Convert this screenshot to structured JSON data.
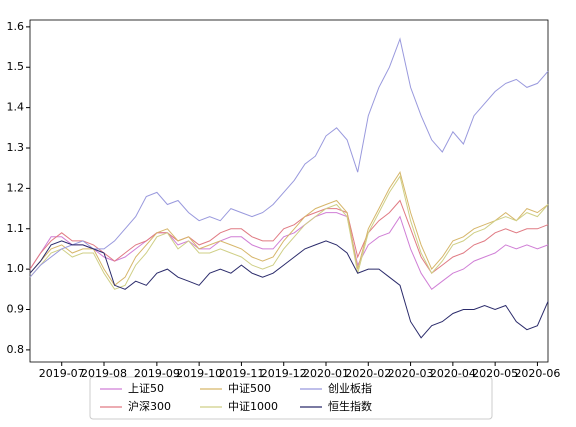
{
  "chart_data": {
    "type": "line",
    "categories": [
      null,
      null,
      null,
      "2019-07",
      null,
      null,
      null,
      "2019-08",
      null,
      null,
      null,
      null,
      "2019-09",
      null,
      null,
      null,
      "2019-10",
      null,
      null,
      null,
      "2019-11",
      null,
      null,
      null,
      "2019-12",
      null,
      null,
      null,
      "2020-01",
      null,
      null,
      null,
      "2020-02",
      null,
      null,
      null,
      "2020-03",
      null,
      null,
      null,
      "2020-04",
      null,
      null,
      null,
      "2020-05",
      null,
      null,
      null,
      "2020-06",
      null
    ],
    "ylim": [
      0.77,
      1.617
    ],
    "yticks": [
      0.8,
      0.9,
      {
        "value": 1,
        "label": "1.0"
      },
      1.1,
      1.2,
      1.3,
      1.4,
      1.5,
      1.6
    ],
    "grid": false,
    "legend": "bottom",
    "series": [
      {
        "name": "上证50",
        "color": "#d07fd6",
        "values": [
          1.0,
          1.04,
          1.08,
          1.08,
          1.06,
          1.06,
          1.05,
          1.03,
          1.02,
          1.03,
          1.05,
          1.07,
          1.09,
          1.09,
          1.06,
          1.07,
          1.05,
          1.05,
          1.07,
          1.08,
          1.08,
          1.06,
          1.05,
          1.05,
          1.08,
          1.09,
          1.11,
          1.13,
          1.14,
          1.14,
          1.13,
          1.01,
          1.06,
          1.08,
          1.09,
          1.13,
          1.05,
          0.99,
          0.95,
          0.97,
          0.99,
          1.0,
          1.02,
          1.03,
          1.04,
          1.06,
          1.05,
          1.06,
          1.05,
          1.06
        ]
      },
      {
        "name": "沪深300",
        "color": "#e07b84",
        "values": [
          1.0,
          1.04,
          1.07,
          1.09,
          1.07,
          1.07,
          1.06,
          1.04,
          1.02,
          1.04,
          1.06,
          1.07,
          1.09,
          1.09,
          1.07,
          1.08,
          1.06,
          1.07,
          1.09,
          1.1,
          1.1,
          1.08,
          1.07,
          1.07,
          1.1,
          1.11,
          1.13,
          1.14,
          1.15,
          1.15,
          1.14,
          1.03,
          1.09,
          1.12,
          1.14,
          1.17,
          1.1,
          1.03,
          0.99,
          1.01,
          1.03,
          1.04,
          1.06,
          1.07,
          1.09,
          1.1,
          1.09,
          1.1,
          1.1,
          1.11
        ]
      },
      {
        "name": "中证500",
        "color": "#d6b66a",
        "values": [
          0.99,
          1.02,
          1.05,
          1.06,
          1.04,
          1.05,
          1.05,
          1.0,
          0.96,
          0.98,
          1.03,
          1.06,
          1.09,
          1.1,
          1.07,
          1.08,
          1.05,
          1.06,
          1.07,
          1.06,
          1.05,
          1.03,
          1.02,
          1.03,
          1.07,
          1.1,
          1.13,
          1.15,
          1.16,
          1.17,
          1.14,
          1.0,
          1.1,
          1.15,
          1.2,
          1.24,
          1.14,
          1.06,
          1.0,
          1.03,
          1.07,
          1.08,
          1.1,
          1.11,
          1.12,
          1.14,
          1.12,
          1.15,
          1.14,
          1.16
        ]
      },
      {
        "name": "中证1000",
        "color": "#cfcf86",
        "values": [
          0.98,
          1.01,
          1.04,
          1.05,
          1.03,
          1.04,
          1.04,
          0.99,
          0.95,
          0.96,
          1.01,
          1.04,
          1.08,
          1.09,
          1.05,
          1.07,
          1.04,
          1.04,
          1.05,
          1.04,
          1.03,
          1.01,
          1.0,
          1.01,
          1.05,
          1.08,
          1.11,
          1.13,
          1.15,
          1.16,
          1.13,
          0.99,
          1.09,
          1.14,
          1.19,
          1.23,
          1.12,
          1.04,
          0.99,
          1.02,
          1.06,
          1.07,
          1.09,
          1.1,
          1.12,
          1.13,
          1.12,
          1.14,
          1.13,
          1.16
        ]
      },
      {
        "name": "创业板指",
        "color": "#9999dd",
        "values": [
          0.98,
          1.01,
          1.03,
          1.05,
          1.06,
          1.07,
          1.05,
          1.05,
          1.07,
          1.1,
          1.13,
          1.18,
          1.19,
          1.16,
          1.17,
          1.14,
          1.12,
          1.13,
          1.12,
          1.15,
          1.14,
          1.13,
          1.14,
          1.16,
          1.19,
          1.22,
          1.26,
          1.28,
          1.33,
          1.35,
          1.32,
          1.24,
          1.38,
          1.45,
          1.5,
          1.57,
          1.45,
          1.38,
          1.32,
          1.29,
          1.34,
          1.31,
          1.38,
          1.41,
          1.44,
          1.46,
          1.47,
          1.45,
          1.46,
          1.49
        ]
      },
      {
        "name": "恒生指数",
        "color": "#2b2b6b",
        "values": [
          0.99,
          1.02,
          1.06,
          1.07,
          1.06,
          1.06,
          1.05,
          1.04,
          0.96,
          0.95,
          0.97,
          0.96,
          0.99,
          1.0,
          0.98,
          0.97,
          0.96,
          0.99,
          1.0,
          0.99,
          1.01,
          0.99,
          0.98,
          0.99,
          1.01,
          1.03,
          1.05,
          1.06,
          1.07,
          1.06,
          1.04,
          0.99,
          1.0,
          1.0,
          0.98,
          0.96,
          0.87,
          0.83,
          0.86,
          0.87,
          0.89,
          0.9,
          0.9,
          0.91,
          0.9,
          0.91,
          0.87,
          0.85,
          0.86,
          0.92
        ]
      }
    ]
  }
}
